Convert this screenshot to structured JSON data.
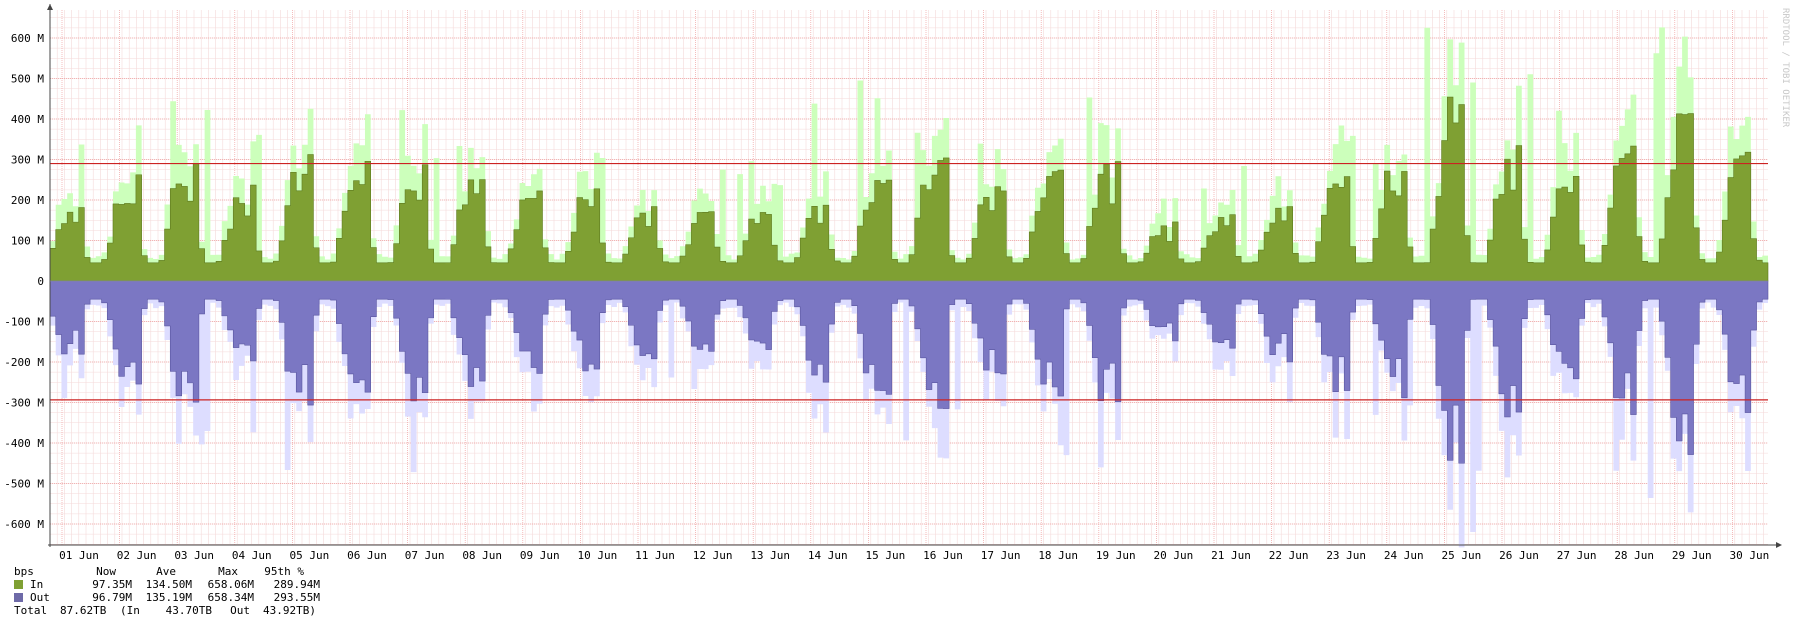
{
  "chart_data": {
    "type": "area",
    "title": "",
    "xlabel": "",
    "ylabel": "",
    "ylim": [
      -660,
      660
    ],
    "y_ticks": [
      {
        "value": 600,
        "label": "600 M"
      },
      {
        "value": 500,
        "label": "500 M"
      },
      {
        "value": 400,
        "label": "400 M"
      },
      {
        "value": 300,
        "label": "300 M"
      },
      {
        "value": 200,
        "label": "200 M"
      },
      {
        "value": 100,
        "label": "100 M"
      },
      {
        "value": 0,
        "label": "0"
      },
      {
        "value": -100,
        "label": "-100 M"
      },
      {
        "value": -200,
        "label": "-200 M"
      },
      {
        "value": -300,
        "label": "-300 M"
      },
      {
        "value": -400,
        "label": "-400 M"
      },
      {
        "value": -500,
        "label": "-500 M"
      },
      {
        "value": -600,
        "label": "-600 M"
      }
    ],
    "x_ticks": [
      "01 Jun",
      "02 Jun",
      "03 Jun",
      "04 Jun",
      "05 Jun",
      "06 Jun",
      "07 Jun",
      "08 Jun",
      "09 Jun",
      "10 Jun",
      "11 Jun",
      "12 Jun",
      "13 Jun",
      "14 Jun",
      "15 Jun",
      "16 Jun",
      "17 Jun",
      "18 Jun",
      "19 Jun",
      "20 Jun",
      "21 Jun",
      "22 Jun",
      "23 Jun",
      "24 Jun",
      "25 Jun",
      "26 Jun",
      "27 Jun",
      "28 Jun",
      "29 Jun",
      "30 Jun"
    ],
    "daily_peak_in": [
      190,
      265,
      320,
      240,
      325,
      305,
      300,
      272,
      240,
      235,
      200,
      190,
      180,
      190,
      265,
      320,
      240,
      292,
      315,
      150,
      170,
      200,
      270,
      300,
      455,
      340,
      265,
      345,
      450,
      340
    ],
    "daily_peak_in_max": [
      380,
      500,
      500,
      450,
      500,
      500,
      480,
      400,
      330,
      330,
      310,
      300,
      300,
      440,
      500,
      400,
      380,
      430,
      530,
      250,
      250,
      370,
      420,
      380,
      640,
      560,
      450,
      520,
      660,
      570
    ],
    "daily_peak_out": [
      190,
      270,
      320,
      210,
      325,
      305,
      300,
      270,
      240,
      230,
      200,
      190,
      180,
      250,
      300,
      325,
      240,
      290,
      315,
      155,
      170,
      200,
      275,
      300,
      455,
      340,
      265,
      345,
      450,
      330
    ],
    "daily_peak_out_max": [
      380,
      500,
      500,
      440,
      480,
      480,
      490,
      380,
      340,
      330,
      310,
      300,
      300,
      440,
      500,
      400,
      400,
      430,
      530,
      250,
      250,
      410,
      420,
      380,
      640,
      540,
      450,
      520,
      660,
      570
    ],
    "percentile_95": {
      "in": 289.94,
      "out": -293.55
    },
    "series": [
      {
        "name": "In",
        "color": "#7fa033",
        "max_color": "#ccffbb"
      },
      {
        "name": "Out",
        "color": "#7b77c3",
        "max_color": "#ddddff"
      }
    ],
    "grid": true,
    "legend_position": "bottom-left"
  },
  "watermark": "RRDTOOL / TOBI OETIKER",
  "legend": {
    "unit": "bps",
    "headers": [
      "Now",
      "Ave",
      "Max",
      "95th %"
    ],
    "rows": [
      {
        "label": "In",
        "color": "#7fa033",
        "now": "97.35M",
        "ave": "134.50M",
        "max": "658.06M",
        "p95": "289.94M"
      },
      {
        "label": "Out",
        "color": "#6e6aa8",
        "now": "96.79M",
        "ave": "135.19M",
        "max": "658.34M",
        "p95": "293.55M"
      }
    ],
    "total": {
      "label": "Total",
      "value": "87.62TB",
      "in_label": "(In",
      "in_value": "43.70TB",
      "out_label": "Out",
      "out_value": "43.92TB)"
    }
  }
}
